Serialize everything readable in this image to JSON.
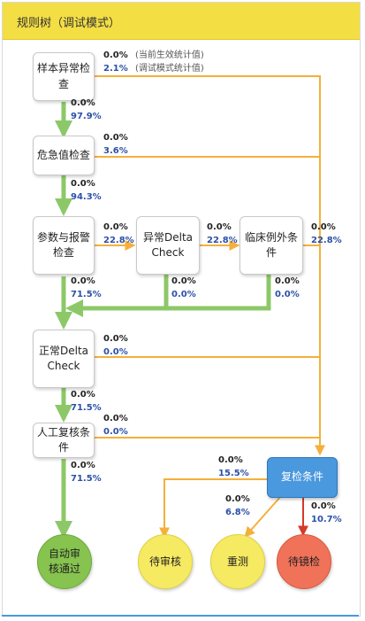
{
  "title": "规则树（调试模式）",
  "legend": {
    "current": "(当前生效统计值)",
    "debug": "(调试模式统计值)"
  },
  "nodes": {
    "sample_check": "样本异常检查",
    "critical_check": "危急值检查",
    "param_alarm_check": "参数与报警检查",
    "abnormal_delta": "异常Delta Check",
    "clinical_exception": "临床例外条件",
    "normal_delta": "正常Delta Check",
    "manual_review": "人工复核条件",
    "recheck_condition": "复检条件",
    "auto_approve": "自动审核通过",
    "pending_review": "待审核",
    "retest": "重测",
    "pending_microscopy": "待镜检"
  },
  "stats": {
    "sample_right": {
      "current": "0.0%",
      "debug": "2.1%"
    },
    "sample_down": {
      "current": "0.0%",
      "debug": "97.9%"
    },
    "critical_right": {
      "current": "0.0%",
      "debug": "3.6%"
    },
    "critical_down": {
      "current": "0.0%",
      "debug": "94.3%"
    },
    "param_right": {
      "current": "0.0%",
      "debug": "22.8%"
    },
    "param_down": {
      "current": "0.0%",
      "debug": "71.5%"
    },
    "abnormal_right": {
      "current": "0.0%",
      "debug": "22.8%"
    },
    "abnormal_down": {
      "current": "0.0%",
      "debug": "0.0%"
    },
    "clinical_right": {
      "current": "0.0%",
      "debug": "22.8%"
    },
    "clinical_down": {
      "current": "0.0%",
      "debug": "0.0%"
    },
    "normal_right": {
      "current": "0.0%",
      "debug": "0.0%"
    },
    "normal_down": {
      "current": "0.0%",
      "debug": "71.5%"
    },
    "manual_right": {
      "current": "0.0%",
      "debug": "0.0%"
    },
    "manual_down": {
      "current": "0.0%",
      "debug": "71.5%"
    },
    "recheck_to_pending": {
      "current": "0.0%",
      "debug": "15.5%"
    },
    "recheck_to_retest": {
      "current": "0.0%",
      "debug": "6.8%"
    },
    "recheck_to_microscopy": {
      "current": "0.0%",
      "debug": "10.7%"
    }
  },
  "colors": {
    "green_line": "#8cc868",
    "orange_line": "#f4b03a",
    "red_line": "#d63a2a",
    "title_bg": "#f3de44",
    "auto_approve_fill": "#86c34f",
    "pending_fill": "#f6ea62",
    "microscopy_fill": "#ef7259",
    "recheck_fill": "#4a98dd"
  }
}
